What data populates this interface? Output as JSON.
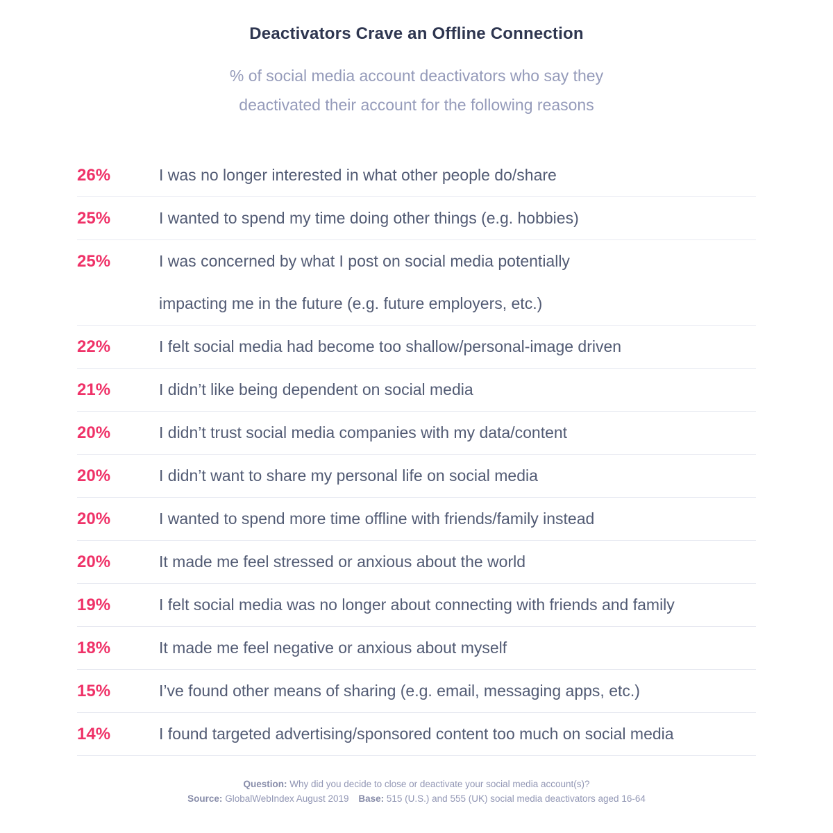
{
  "colors": {
    "accent_pink": "#ef3268",
    "title_navy": "#2e3650",
    "body_slate": "#525b74",
    "subtitle_gray": "#959bba",
    "divider": "#e7e9f1",
    "background": "#ffffff"
  },
  "header": {
    "title": "Deactivators Crave an Offline Connection",
    "subtitle": "% of social media account deactivators who say they\ndeactivated their account for the following reasons"
  },
  "rows": [
    {
      "percent": "26%",
      "reason": "I was no longer interested in what other people do/share"
    },
    {
      "percent": "25%",
      "reason": "I wanted to spend my time doing other things (e.g. hobbies)"
    },
    {
      "percent": "25%",
      "reason": "I was concerned by what I post on social media potentially\nimpacting me in the future (e.g. future employers, etc.)"
    },
    {
      "percent": "22%",
      "reason": "I felt social media had become too shallow/personal-image driven"
    },
    {
      "percent": "21%",
      "reason": "I didn’t like being dependent on social media"
    },
    {
      "percent": "20%",
      "reason": "I didn’t trust social media companies with my data/content"
    },
    {
      "percent": "20%",
      "reason": "I didn’t want to share my personal life on social media"
    },
    {
      "percent": "20%",
      "reason": "I wanted to spend more time offline with friends/family instead"
    },
    {
      "percent": "20%",
      "reason": "It made me feel stressed or anxious about the world"
    },
    {
      "percent": "19%",
      "reason": "I felt social media was no longer about connecting with friends and family"
    },
    {
      "percent": "18%",
      "reason": "It made me feel negative or anxious about myself"
    },
    {
      "percent": "15%",
      "reason": "I’ve found other means of sharing (e.g. email, messaging apps, etc.)"
    },
    {
      "percent": "14%",
      "reason": "I found targeted advertising/sponsored content too much on social media"
    }
  ],
  "footer": {
    "question_label": "Question:",
    "question_text": "Why did you decide to close or deactivate your social media account(s)?",
    "source_label": "Source:",
    "source_text": "GlobalWebIndex August 2019",
    "base_label": "Base:",
    "base_text": "515 (U.S.) and 555 (UK) social media deactivators aged 16-64"
  },
  "chart_data": {
    "type": "table",
    "title": "Deactivators Crave an Offline Connection",
    "subtitle": "% of social media account deactivators who say they deactivated their account for the following reasons",
    "unit": "%",
    "categories": [
      "I was no longer interested in what other people do/share",
      "I wanted to spend my time doing other things (e.g. hobbies)",
      "I was concerned by what I post on social media potentially impacting me in the future (e.g. future employers, etc.)",
      "I felt social media had become too shallow/personal-image driven",
      "I didn’t like being dependent on social media",
      "I didn’t trust social media companies with my data/content",
      "I didn’t want to share my personal life on social media",
      "I wanted to spend more time offline with friends/family instead",
      "It made me feel stressed or anxious about the world",
      "I felt social media was no longer about connecting with friends and family",
      "It made me feel negative or anxious about myself",
      "I’ve found other means of sharing (e.g. email, messaging apps, etc.)",
      "I found targeted advertising/sponsored content too much on social media"
    ],
    "values": [
      26,
      25,
      25,
      22,
      21,
      20,
      20,
      20,
      20,
      19,
      18,
      15,
      14
    ],
    "annotations": {
      "question": "Question: Why did you decide to close or deactivate your social media account(s)?",
      "source": "Source: GlobalWebIndex August 2019",
      "base": "Base: 515 (U.S.) and 555 (UK) social media deactivators aged 16-64"
    },
    "layout": {
      "legend": "none",
      "grid": "row-dividers"
    }
  }
}
